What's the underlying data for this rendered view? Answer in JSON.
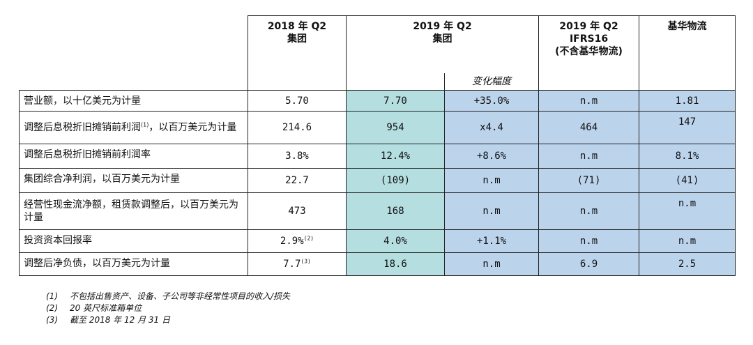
{
  "headers": {
    "col1": {
      "line1": "2018 年 Q2",
      "line2": "集团"
    },
    "col2": {
      "line1": "2019 年 Q2",
      "line2": "集团",
      "sub": "变化幅度"
    },
    "col3": {
      "line1": "2019 年 Q2",
      "line2": "IFRS16",
      "line3": "(不含基华物流)"
    },
    "col4": {
      "line1": "基华物流"
    }
  },
  "rows": [
    {
      "label": "营业额，以十亿美元为计量",
      "v2018": "5.70",
      "v2019": "7.70",
      "change": "+35.0%",
      "ifrs": "n.m",
      "ceva": "1.81"
    },
    {
      "label": "调整后息税折旧摊销前利润",
      "label_sup": "(1)",
      "label_tail": "，以百万美元为计量",
      "v2018": "214.6",
      "v2019": "954",
      "change": "x4.4",
      "ifrs": "464",
      "ceva": "147"
    },
    {
      "label": "调整后息税折旧摊销前利润率",
      "v2018": "3.8%",
      "v2019": "12.4%",
      "change": "+8.6%",
      "ifrs": "n.m",
      "ceva": "8.1%"
    },
    {
      "label": "集团综合净利润，以百万美元为计量",
      "v2018": "22.7",
      "v2019": "(109)",
      "change": "n.m",
      "ifrs": "(71)",
      "ceva": "(41)"
    },
    {
      "label": "经营性现金流净额，租赁款调整后，以百万美元为计量",
      "v2018": "473",
      "v2019": "168",
      "change": "n.m",
      "ifrs": "n.m",
      "ceva": "n.m"
    },
    {
      "label": "投资资本回报率",
      "v2018": "2.9%",
      "v2018_sup": "(2)",
      "v2019": "4.0%",
      "change": "+1.1%",
      "ifrs": "n.m",
      "ceva": "n.m"
    },
    {
      "label": "调整后净负债，以百万美元为计量",
      "v2018": "7.7",
      "v2018_sup": "(3)",
      "v2019": "18.6",
      "change": "n.m",
      "ifrs": "6.9",
      "ceva": "2.5"
    }
  ],
  "notes": [
    {
      "idx": "(1)",
      "text": "不包括出售资产、设备、子公司等非经常性项目的收入/损失"
    },
    {
      "idx": "(2)",
      "text": "20 英尺标准箱单位"
    },
    {
      "idx": "(3)",
      "text": "截至 2018 年 12 月 31 日"
    }
  ]
}
